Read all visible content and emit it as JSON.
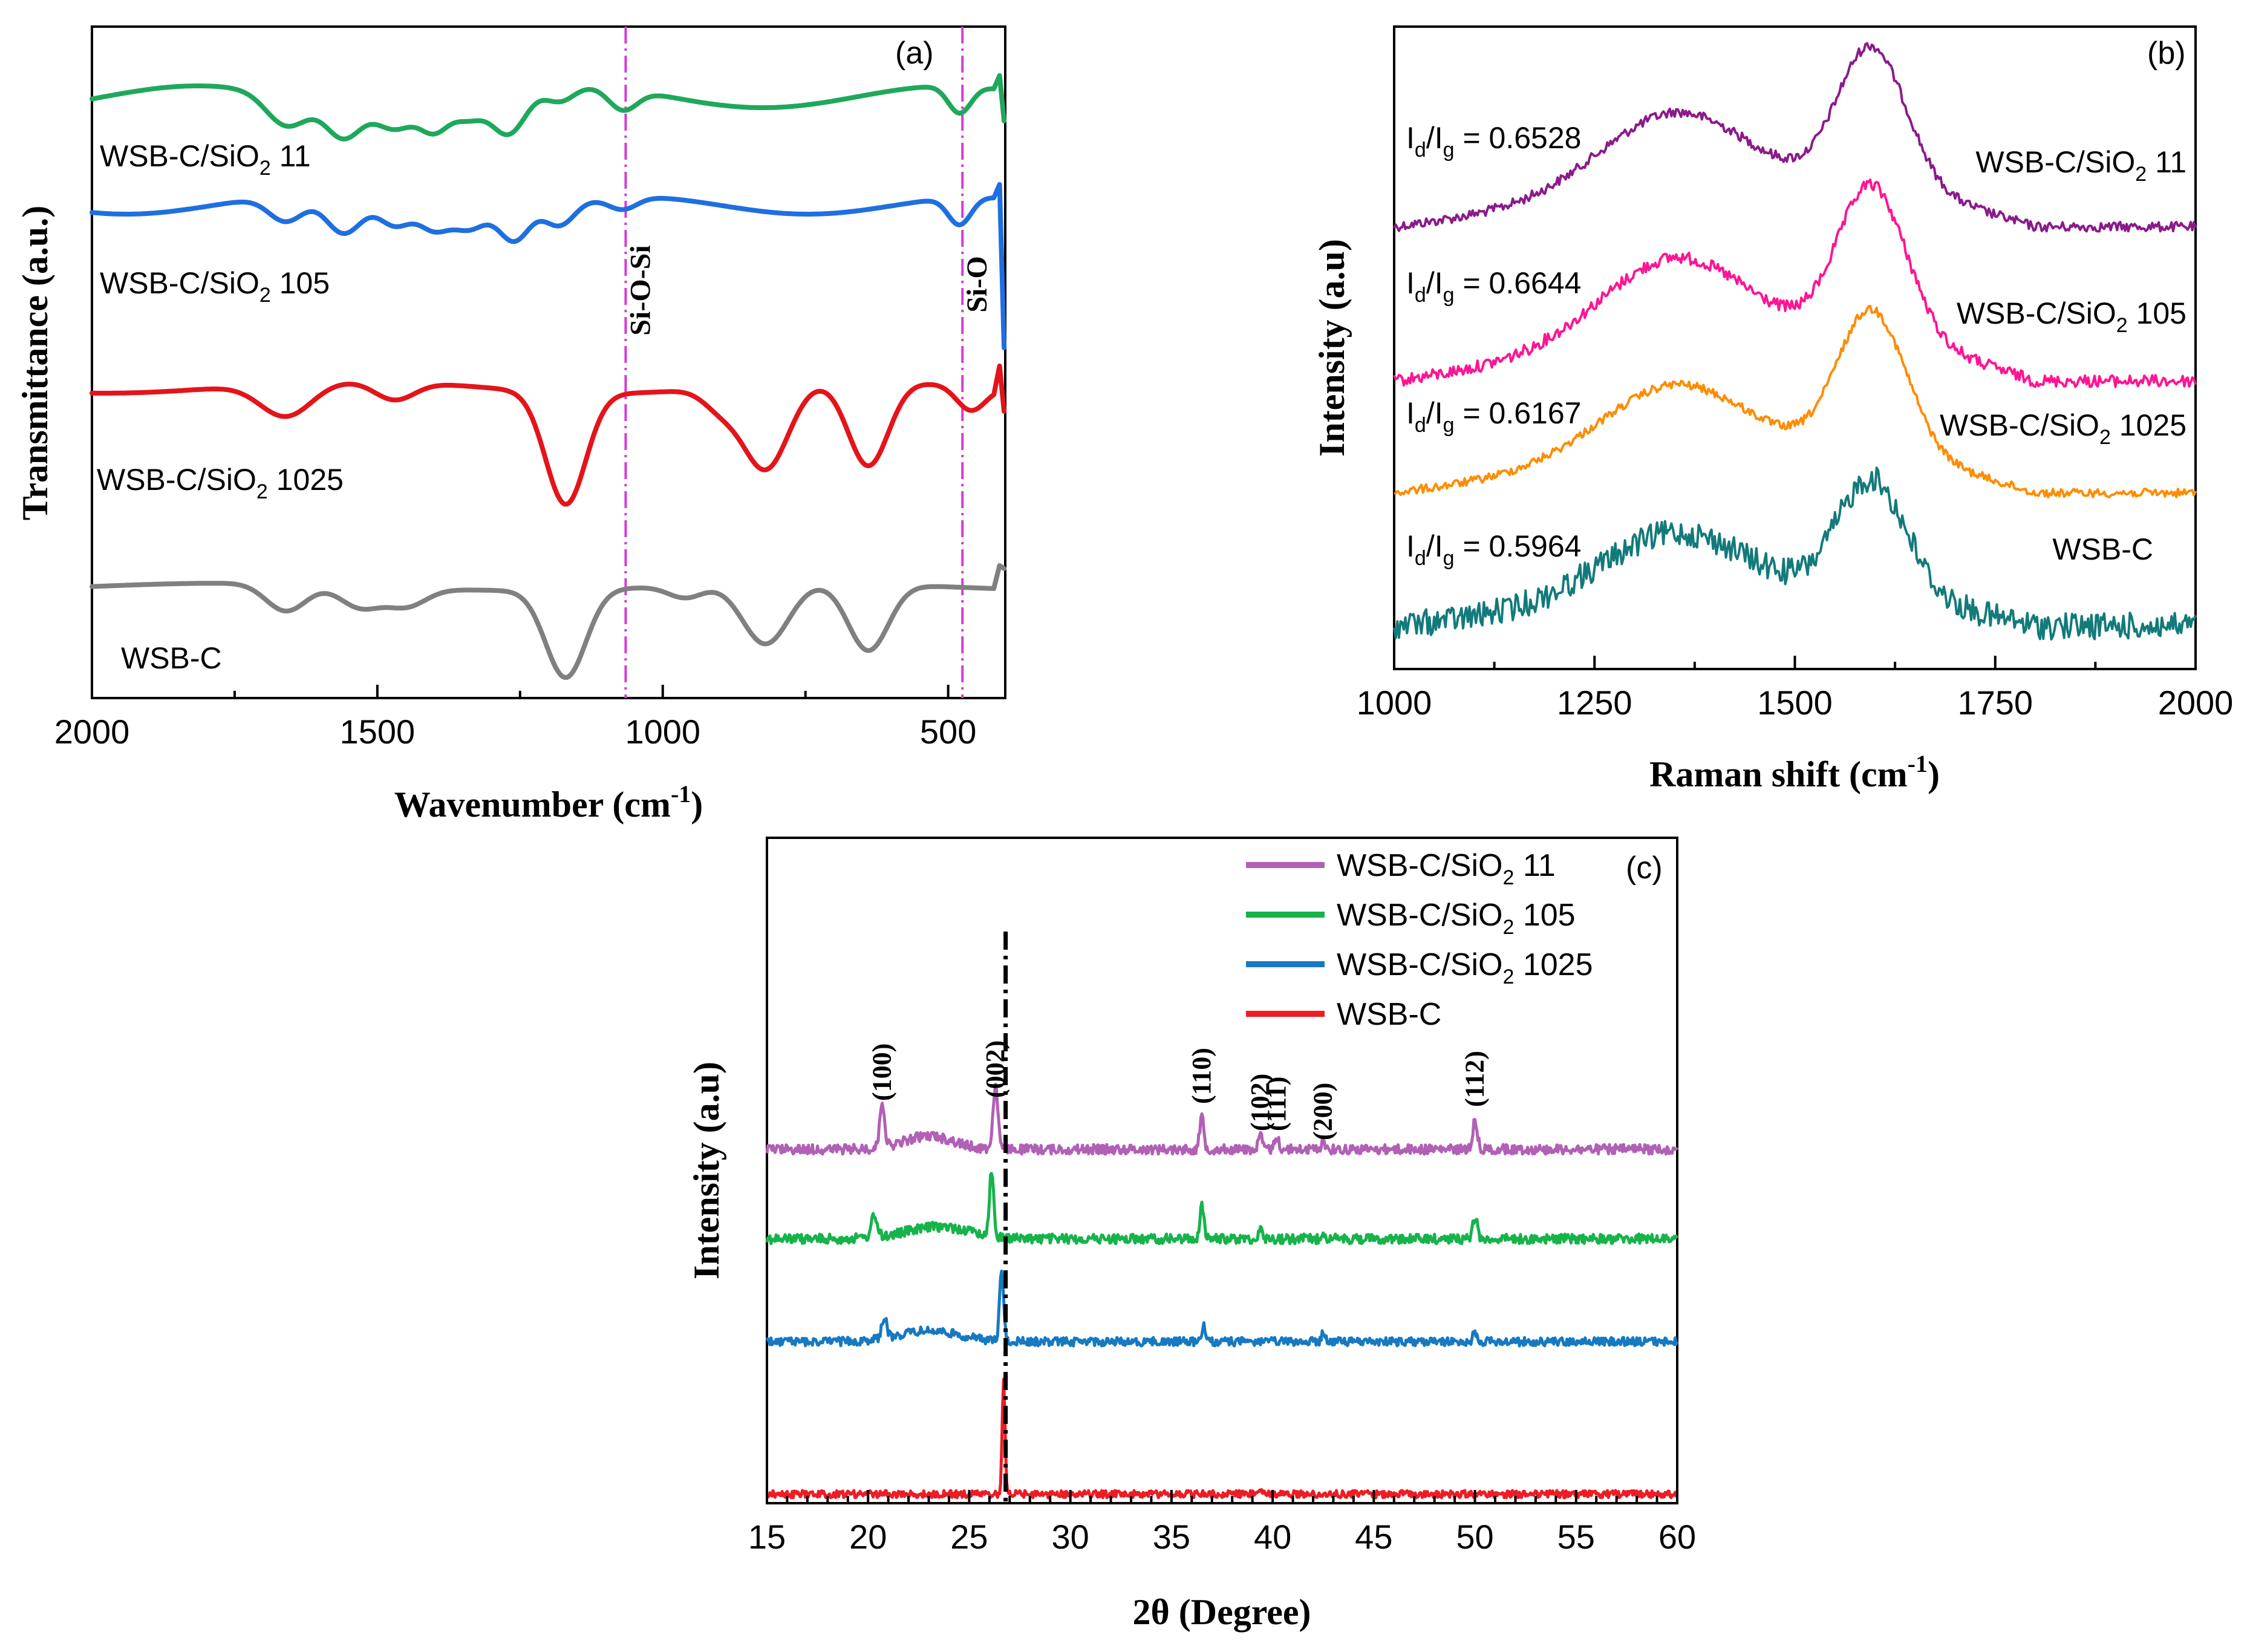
{
  "chart_data": [
    {
      "panel": "(a)",
      "type": "line",
      "xlabel": "Wavenumber (cm",
      "xlabel_sup": "-1",
      "xlabel_close": ")",
      "ylabel": "Transmittance (a.u.)",
      "xlim": [
        2000,
        400
      ],
      "xticks": [
        "2000",
        "1500",
        "1000",
        "500"
      ],
      "reference_lines": [
        {
          "x": 1065,
          "label": "Si-O-Si",
          "color": "#d63ad6"
        },
        {
          "x": 475,
          "label": "Si-O",
          "color": "#d63ad6"
        }
      ],
      "series": [
        {
          "name": "WSB-C/SiO",
          "sub": "2",
          "suffix": " 11",
          "color": "#1fa85c"
        },
        {
          "name": "WSB-C/SiO",
          "sub": "2",
          "suffix": " 105",
          "color": "#1e6fe0"
        },
        {
          "name": "WSB-C/SiO",
          "sub": "2",
          "suffix": " 1025",
          "color": "#e3141a"
        },
        {
          "name": "WSB-C",
          "sub": "",
          "suffix": "",
          "color": "#808080"
        }
      ]
    },
    {
      "panel": "(b)",
      "type": "line",
      "xlabel": "Raman shift (cm",
      "xlabel_sup": "-1",
      "xlabel_close": ")",
      "ylabel": "Intensity (a.u)",
      "xlim": [
        1000,
        2000
      ],
      "xticks": [
        "1000",
        "1250",
        "1500",
        "1750",
        "2000"
      ],
      "d_band": 1350,
      "g_band": 1595,
      "series": [
        {
          "name": "WSB-C/SiO",
          "sub": "2",
          "suffix": " 11",
          "color": "#8b1a8b",
          "ratio_text": "= 0.6528",
          "id_ig": 0.6528
        },
        {
          "name": "WSB-C/SiO",
          "sub": "2",
          "suffix": " 105",
          "color": "#ff1493",
          "ratio_text": "= 0.6644",
          "id_ig": 0.6644
        },
        {
          "name": "WSB-C/SiO",
          "sub": "2",
          "suffix": " 1025",
          "color": "#ff8c00",
          "ratio_text": "= 0.6167",
          "id_ig": 0.6167
        },
        {
          "name": "WSB-C",
          "sub": "",
          "suffix": "",
          "color": "#137a7a",
          "ratio_text": "= 0.5964",
          "id_ig": 0.5964
        }
      ]
    },
    {
      "panel": "(c)",
      "type": "line",
      "xlabel": "2θ (Degree)",
      "ylabel": "Intensity (a.u)",
      "xlim": [
        15,
        60
      ],
      "xticks": [
        "15",
        "20",
        "25",
        "30",
        "35",
        "40",
        "45",
        "50",
        "55",
        "60"
      ],
      "reference_line_x": 26.8,
      "peaks": [
        {
          "label": "(100)",
          "x": 20.7
        },
        {
          "label": "(002)",
          "x": 26.3
        },
        {
          "label": "(110)",
          "x": 36.5
        },
        {
          "label": "(102)",
          "x": 39.4
        },
        {
          "label": "(111)",
          "x": 40.2
        },
        {
          "label": "(200)",
          "x": 42.5
        },
        {
          "label": "(112)",
          "x": 50.0
        }
      ],
      "series": [
        {
          "name": "WSB-C/SiO",
          "sub": "2",
          "suffix": " 11",
          "color": "#b160b5"
        },
        {
          "name": "WSB-C/SiO",
          "sub": "2",
          "suffix": " 105",
          "color": "#16b34a"
        },
        {
          "name": "WSB-C/SiO",
          "sub": "2",
          "suffix": " 1025",
          "color": "#1679c2"
        },
        {
          "name": "WSB-C",
          "sub": "",
          "suffix": "",
          "color": "#ee1c24"
        }
      ]
    }
  ],
  "ratio_symbol": {
    "I": "I",
    "d": "d",
    "slash": "/",
    "g": "g"
  }
}
